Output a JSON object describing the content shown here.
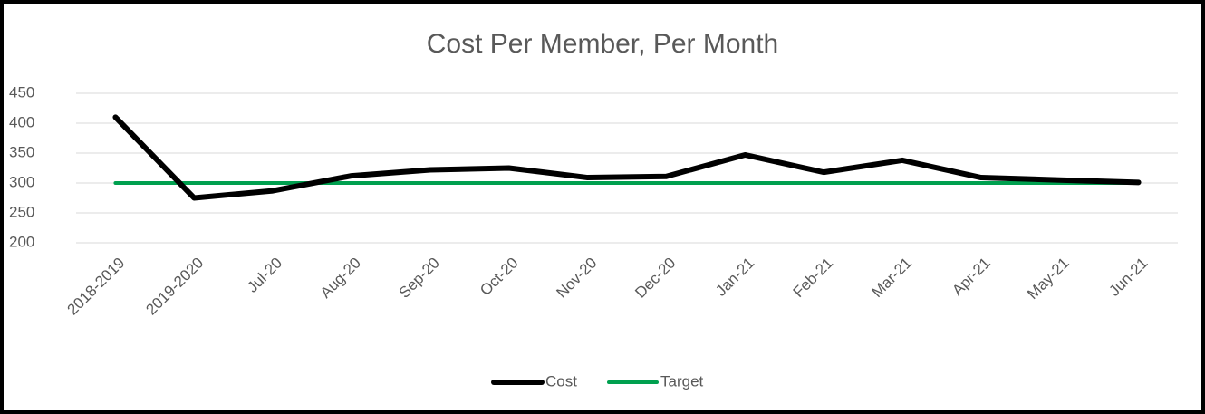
{
  "chart_data": {
    "type": "line",
    "title": "Cost Per Member, Per Month",
    "categories": [
      "2018-2019",
      "2019-2020",
      "Jul-20",
      "Aug-20",
      "Sep-20",
      "Oct-20",
      "Nov-20",
      "Dec-20",
      "Jan-21",
      "Feb-21",
      "Mar-21",
      "Apr-21",
      "May-21",
      "Jun-21"
    ],
    "series": [
      {
        "name": "Cost",
        "color": "#000000",
        "values": [
          410,
          275,
          287,
          312,
          322,
          325,
          309,
          311,
          347,
          318,
          338,
          309,
          305,
          301
        ]
      },
      {
        "name": "Target",
        "color": "#00a04f",
        "values": [
          300,
          300,
          300,
          300,
          300,
          300,
          300,
          300,
          300,
          300,
          300,
          300,
          300,
          300
        ]
      }
    ],
    "ylim": [
      200,
      450
    ],
    "yticks": [
      200,
      250,
      300,
      350,
      400,
      450
    ],
    "grid": true,
    "legend": "bottom"
  }
}
